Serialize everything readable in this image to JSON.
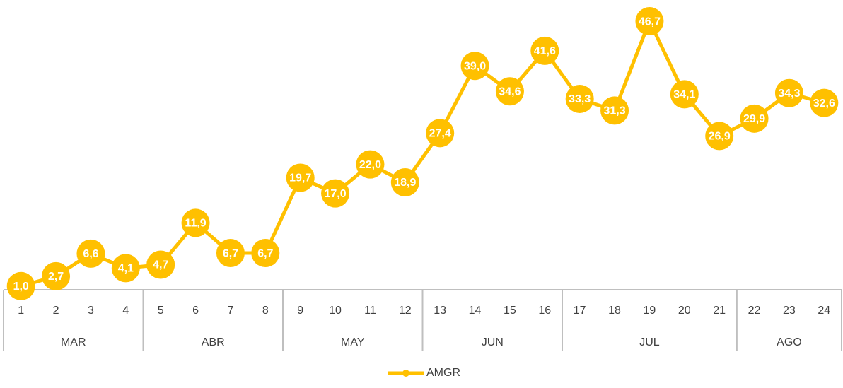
{
  "chart_data": {
    "type": "line",
    "groups": [
      {
        "label": "MAR",
        "categories": [
          "1",
          "2",
          "3",
          "4"
        ]
      },
      {
        "label": "ABR",
        "categories": [
          "5",
          "6",
          "7",
          "8"
        ]
      },
      {
        "label": "MAY",
        "categories": [
          "9",
          "10",
          "11",
          "12"
        ]
      },
      {
        "label": "JUN",
        "categories": [
          "13",
          "14",
          "15",
          "16"
        ]
      },
      {
        "label": "JUL",
        "categories": [
          "17",
          "18",
          "19",
          "20",
          "21"
        ]
      },
      {
        "label": "AGO",
        "categories": [
          "22",
          "23",
          "24"
        ]
      }
    ],
    "series": [
      {
        "name": "AMGR",
        "color": "#ffc000",
        "values": [
          1.0,
          2.7,
          6.6,
          4.1,
          4.7,
          11.9,
          6.7,
          6.7,
          19.7,
          17.0,
          22.0,
          18.9,
          27.4,
          39.0,
          34.6,
          41.6,
          33.3,
          31.3,
          46.7,
          34.1,
          26.9,
          29.9,
          34.3,
          32.6
        ],
        "value_labels": [
          "1,0",
          "2,7",
          "6,6",
          "4,1",
          "4,7",
          "11,9",
          "6,7",
          "6,7",
          "19,7",
          "17,0",
          "22,0",
          "18,9",
          "27,4",
          "39,0",
          "34,6",
          "41,6",
          "33,3",
          "31,3",
          "46,7",
          "34,1",
          "26,9",
          "29,9",
          "34,3",
          "32,6"
        ]
      }
    ],
    "ylim": [
      0,
      50
    ],
    "legend": "bottom"
  }
}
